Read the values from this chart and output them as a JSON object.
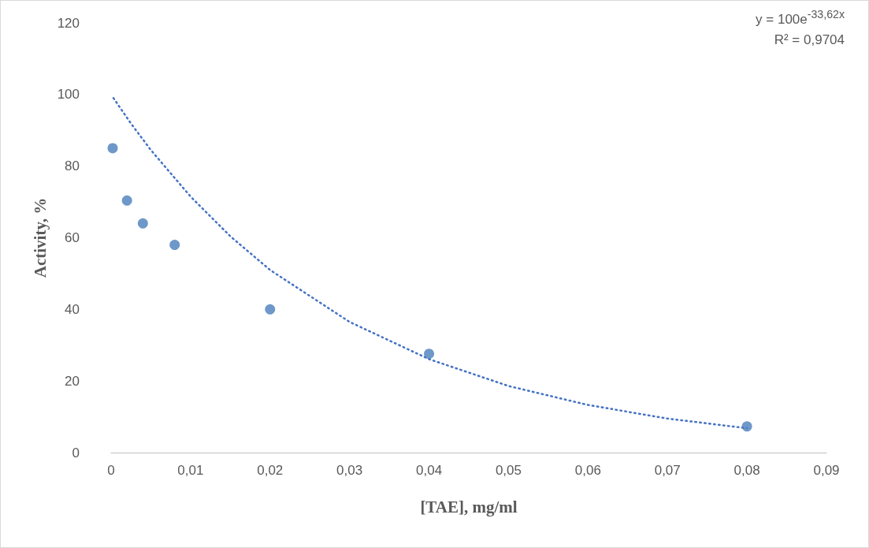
{
  "chart_data": {
    "type": "scatter",
    "xlabel": "[TAE], mg/ml",
    "ylabel": "Activity, %",
    "annotations": [
      "y = 100e$^{-33,62x}$",
      "R² = 0,9704"
    ],
    "series": [
      {
        "color": "#4a7ebb",
        "marker": "circle",
        "x": [
          0.0002,
          0.002,
          0.004,
          0.008,
          0.02,
          0.04,
          0.08
        ],
        "values": [
          85,
          70.4,
          64,
          58,
          40,
          27.6,
          7.3
        ]
      },
      {
        "type": "line",
        "color": "#4472c4",
        "marker": "none",
        "line_style": "dotted",
        "x": [
          0.0003,
          0.0025,
          0.005,
          0.01,
          0.015,
          0.02,
          0.03,
          0.04,
          0.05,
          0.06,
          0.07,
          0.08
        ],
        "values": [
          99.0,
          91.9,
          84.5,
          71.5,
          60.4,
          51.0,
          36.5,
          26.1,
          18.6,
          13.3,
          9.5,
          6.8
        ]
      }
    ],
    "xlim": [
      0,
      0.09
    ],
    "xticks": [
      0,
      {
        "value": 0.01,
        "label": "0,01"
      },
      {
        "value": 0.02,
        "label": "0,02"
      },
      {
        "value": 0.03,
        "label": "0,03"
      },
      {
        "value": 0.04,
        "label": "0,04"
      },
      {
        "value": 0.05,
        "label": "0,05"
      },
      {
        "value": 0.06,
        "label": "0,06"
      },
      {
        "value": 0.07,
        "label": "0,07"
      },
      {
        "value": 0.08,
        "label": "0,08"
      },
      {
        "value": 0.09,
        "label": "0,09"
      }
    ],
    "ylim": [
      0,
      120
    ],
    "yticks": [
      0,
      20,
      40,
      60,
      80,
      100,
      120
    ],
    "grid": false
  }
}
